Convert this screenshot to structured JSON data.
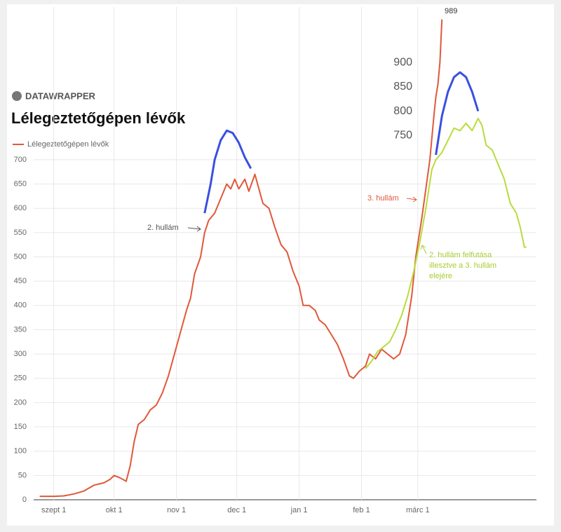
{
  "brand": "DATAWRAPPER",
  "chart_data": {
    "type": "line",
    "title": "Lélegeztetőgépen lévők",
    "legend_label": "Lélegeztetőgépen lévők",
    "xlim": [
      -10,
      240
    ],
    "xticks": [
      {
        "value": 0,
        "label": "szept 1"
      },
      {
        "value": 30,
        "label": "okt 1"
      },
      {
        "value": 61,
        "label": "nov 1"
      },
      {
        "value": 91,
        "label": "dec 1"
      },
      {
        "value": 122,
        "label": "jan 1"
      },
      {
        "value": 153,
        "label": "feb 1"
      },
      {
        "value": 181,
        "label": "márc 1"
      }
    ],
    "ylim": [
      0,
      1000
    ],
    "yticks": [
      0,
      50,
      100,
      150,
      200,
      250,
      300,
      350,
      400,
      450,
      500,
      550,
      600,
      650,
      700
    ],
    "extra_yticks": [
      750,
      800,
      850,
      900
    ],
    "grid": true,
    "series": [
      {
        "name": "Lélegeztetőgépen lévők",
        "color": "#e0583a",
        "x": [
          -7,
          0,
          5,
          10,
          15,
          20,
          25,
          28,
          30,
          33,
          36,
          38,
          40,
          42,
          45,
          48,
          51,
          54,
          57,
          60,
          63,
          66,
          68,
          70,
          73,
          75,
          77,
          80,
          83,
          86,
          88,
          90,
          92,
          95,
          97,
          100,
          102,
          104,
          107,
          110,
          113,
          116,
          119,
          122,
          124,
          127,
          130,
          132,
          135,
          138,
          141,
          144,
          147,
          149,
          152,
          155,
          157,
          160,
          163,
          166,
          169,
          172,
          175,
          178,
          180,
          183,
          185,
          187,
          189,
          190,
          191,
          192,
          193
        ],
        "values": [
          7,
          7,
          8,
          12,
          18,
          30,
          35,
          42,
          50,
          45,
          38,
          70,
          120,
          155,
          165,
          185,
          195,
          220,
          255,
          300,
          345,
          390,
          415,
          465,
          500,
          550,
          575,
          590,
          620,
          650,
          640,
          660,
          640,
          660,
          635,
          670,
          640,
          610,
          600,
          560,
          525,
          510,
          470,
          440,
          400,
          400,
          390,
          370,
          360,
          340,
          320,
          290,
          255,
          250,
          265,
          275,
          300,
          290,
          310,
          300,
          290,
          300,
          340,
          420,
          500,
          580,
          640,
          700,
          790,
          830,
          855,
          900,
          989
        ]
      },
      {
        "color": "#3b4fe0",
        "x": [
          75,
          78,
          80,
          83,
          86,
          89,
          92,
          95,
          98
        ],
        "values": [
          590,
          650,
          700,
          740,
          760,
          755,
          735,
          705,
          682
        ]
      },
      {
        "color": "#3b4fe0",
        "x": [
          190,
          193,
          196,
          199,
          202,
          205,
          208,
          211
        ],
        "values": [
          710,
          790,
          840,
          870,
          880,
          870,
          840,
          800
        ]
      },
      {
        "color": "#b8dc3c",
        "x": [
          155,
          158,
          161,
          164,
          167,
          170,
          173,
          176,
          179,
          182,
          185,
          188,
          190,
          193,
          196,
          199,
          202,
          205,
          208,
          211,
          213,
          215,
          218,
          221,
          224,
          227,
          230,
          232,
          234,
          235
        ],
        "values": [
          270,
          285,
          305,
          315,
          325,
          350,
          380,
          420,
          470,
          530,
          600,
          680,
          700,
          715,
          740,
          765,
          760,
          775,
          760,
          785,
          770,
          730,
          720,
          690,
          660,
          610,
          590,
          560,
          520,
          520
        ]
      }
    ],
    "peak_label": "989",
    "annotations": [
      "2. hullám",
      "3. hullám",
      "2. hullám felfutása",
      "illesztve a 3. hullám",
      "elejére"
    ]
  }
}
